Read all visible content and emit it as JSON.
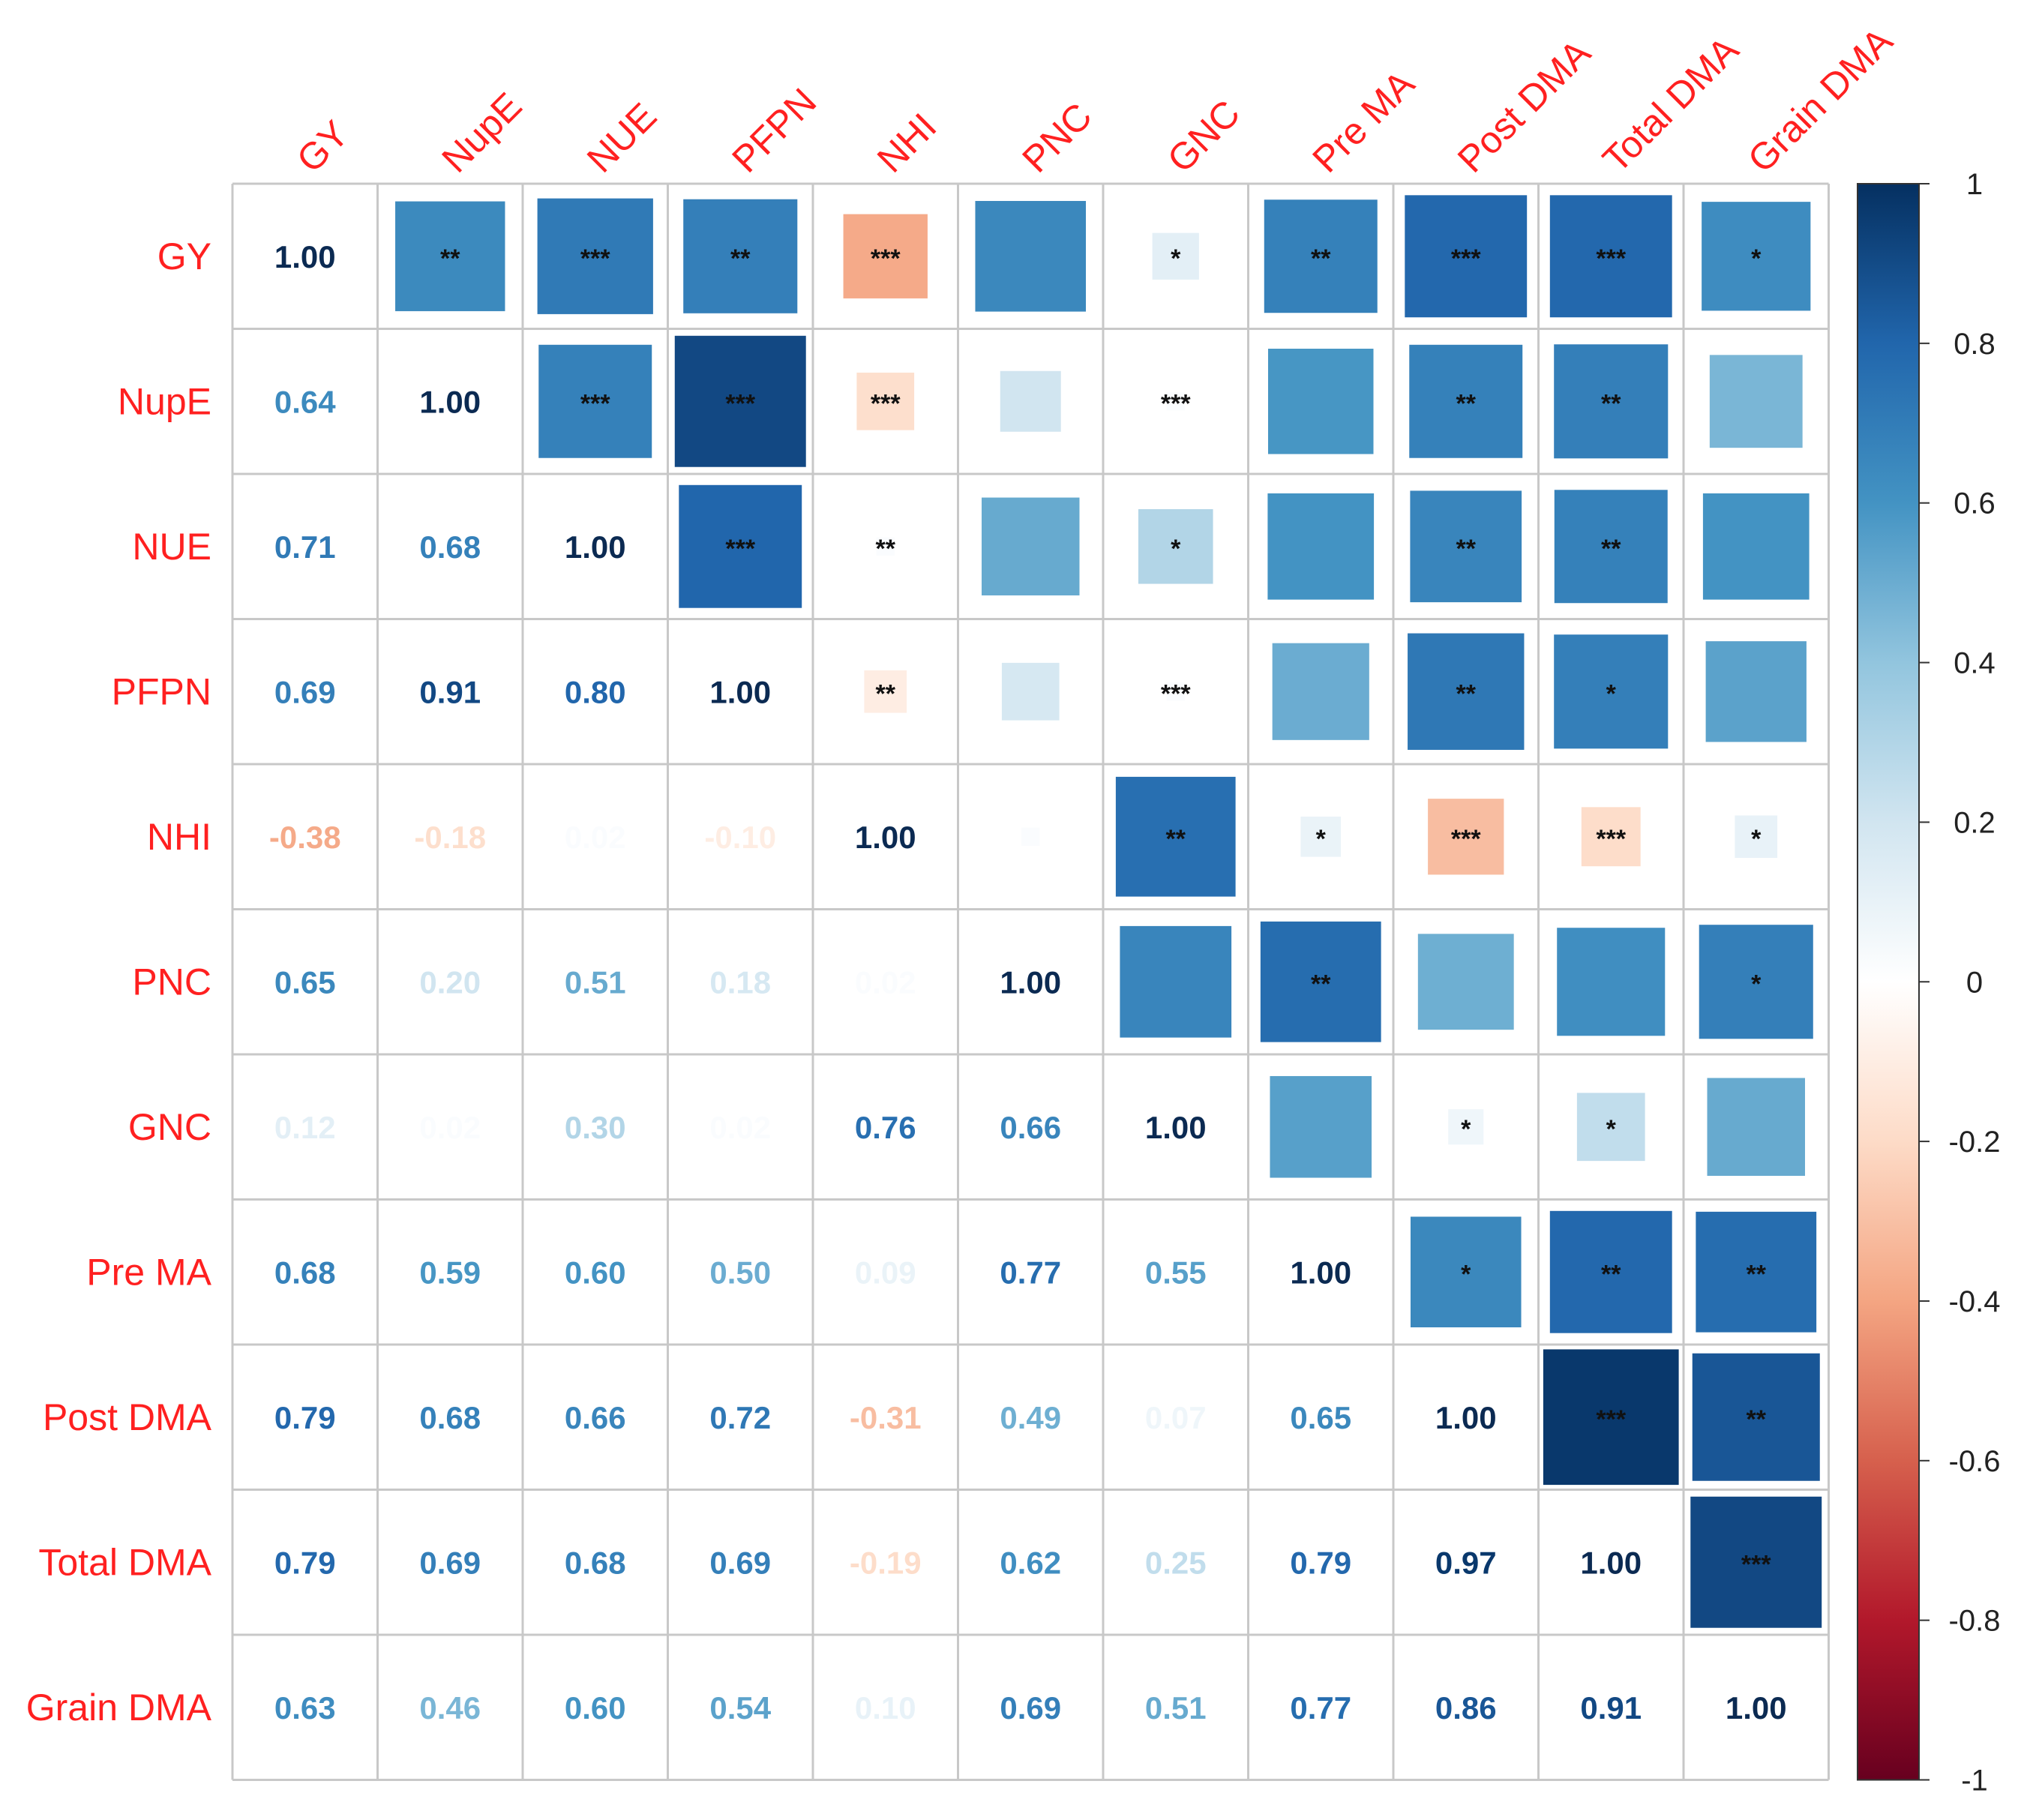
{
  "chart_data": {
    "type": "heatmap",
    "variables": [
      "GY",
      "NupE",
      "NUE",
      "PFPN",
      "NHI",
      "PNC",
      "GNC",
      "Pre MA",
      "Post DMA",
      "Total DMA",
      "Grain DMA"
    ],
    "matrix": [
      [
        1.0,
        0.64,
        0.71,
        0.69,
        -0.38,
        0.65,
        0.12,
        0.68,
        0.79,
        0.79,
        0.63
      ],
      [
        0.64,
        1.0,
        0.68,
        0.91,
        -0.18,
        0.2,
        0.02,
        0.59,
        0.68,
        0.69,
        0.46
      ],
      [
        0.71,
        0.68,
        1.0,
        0.8,
        0.02,
        0.51,
        0.3,
        0.6,
        0.66,
        0.68,
        0.6
      ],
      [
        0.69,
        0.91,
        0.8,
        1.0,
        -0.1,
        0.18,
        0.02,
        0.5,
        0.72,
        0.69,
        0.54
      ],
      [
        -0.38,
        -0.18,
        0.02,
        -0.1,
        1.0,
        0.02,
        0.76,
        0.09,
        -0.31,
        -0.19,
        0.1
      ],
      [
        0.65,
        0.2,
        0.51,
        0.18,
        0.02,
        1.0,
        0.66,
        0.77,
        0.49,
        0.62,
        0.69
      ],
      [
        0.12,
        0.02,
        0.3,
        0.02,
        0.76,
        0.66,
        1.0,
        0.55,
        0.07,
        0.25,
        0.51
      ],
      [
        0.68,
        0.59,
        0.6,
        0.5,
        0.09,
        0.77,
        0.55,
        1.0,
        0.65,
        0.79,
        0.77
      ],
      [
        0.79,
        0.68,
        0.66,
        0.72,
        -0.31,
        0.49,
        0.07,
        0.65,
        1.0,
        0.97,
        0.86
      ],
      [
        0.79,
        0.69,
        0.68,
        0.69,
        -0.19,
        0.62,
        0.25,
        0.79,
        0.97,
        1.0,
        0.91
      ],
      [
        0.63,
        0.46,
        0.6,
        0.54,
        0.1,
        0.69,
        0.51,
        0.77,
        0.86,
        0.91,
        1.0
      ]
    ],
    "significance": [
      [
        "",
        "**",
        "***",
        "**",
        "***",
        "",
        "*",
        "**",
        "***",
        "***",
        "*"
      ],
      [
        "",
        "",
        "***",
        "***",
        "***",
        "",
        "***",
        "",
        "**",
        "**",
        ""
      ],
      [
        "",
        "",
        "",
        "***",
        "**",
        "",
        "*",
        "",
        "**",
        "**",
        ""
      ],
      [
        "",
        "",
        "",
        "",
        "**",
        "",
        "***",
        "",
        "**",
        "*",
        ""
      ],
      [
        "",
        "",
        "",
        "",
        "",
        "",
        "**",
        "*",
        "***",
        "***",
        "*"
      ],
      [
        "",
        "",
        "",
        "",
        "",
        "",
        "",
        "**",
        "",
        "",
        "*"
      ],
      [
        "",
        "",
        "",
        "",
        "",
        "",
        "",
        "",
        "*",
        "*",
        ""
      ],
      [
        "",
        "",
        "",
        "",
        "",
        "",
        "",
        "",
        "*",
        "**",
        "**"
      ],
      [
        "",
        "",
        "",
        "",
        "",
        "",
        "",
        "",
        "",
        "***",
        "**"
      ],
      [
        "",
        "",
        "",
        "",
        "",
        "",
        "",
        "",
        "",
        "",
        "***"
      ],
      [
        "",
        "",
        "",
        "",
        "",
        "",
        "",
        "",
        "",
        "",
        ""
      ]
    ],
    "lower_triangle": "numbers",
    "upper_triangle": "squares",
    "color_scale": {
      "range": [
        -1,
        1
      ],
      "ticks": [
        "1",
        "0.8",
        "0.6",
        "0.4",
        "0.2",
        "0",
        "-0.2",
        "-0.4",
        "-0.6",
        "-0.8",
        "-1"
      ],
      "stops": [
        "#67001f",
        "#b2182b",
        "#d6604d",
        "#f4a582",
        "#fddbc7",
        "#ffffff",
        "#d1e5f0",
        "#92c5de",
        "#4393c3",
        "#2166ac",
        "#053061"
      ]
    },
    "label_color": "#ff2020",
    "grid_color": "#c8c8c8",
    "legend_position": "right"
  }
}
